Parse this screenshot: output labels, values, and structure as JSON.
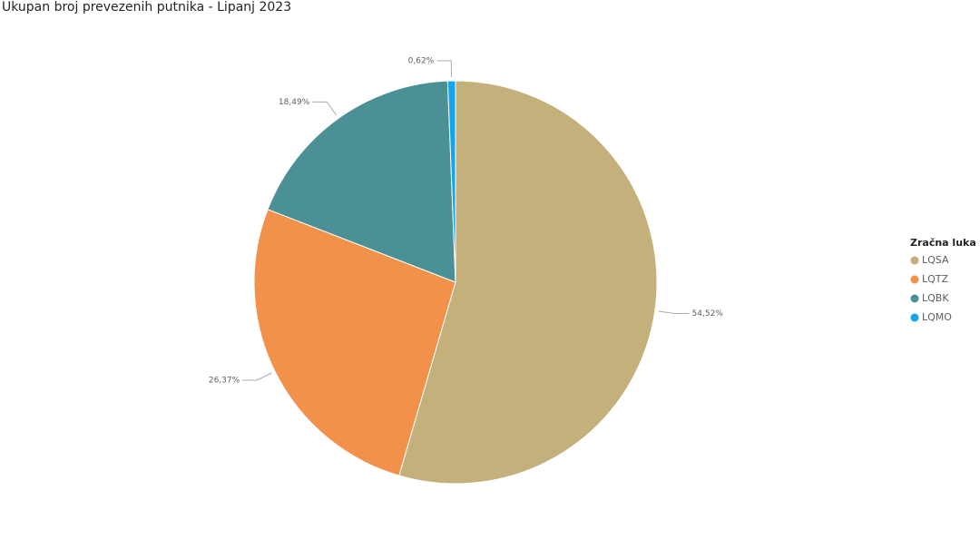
{
  "chart_data": {
    "type": "pie",
    "title": "Ukupan broj prevezenih putnika - Lipanj 2023",
    "legend_title": "Zračna luka",
    "categories": [
      "LQSA",
      "LQTZ",
      "LQBK",
      "LQMO"
    ],
    "values": [
      54.52,
      26.37,
      18.49,
      0.62
    ],
    "value_labels": [
      "54,52%",
      "26,37%",
      "18,49%",
      "0,62%"
    ],
    "colors": [
      "#c4b07b",
      "#f2914a",
      "#4a9094",
      "#13a4e9"
    ],
    "legend": "right"
  }
}
